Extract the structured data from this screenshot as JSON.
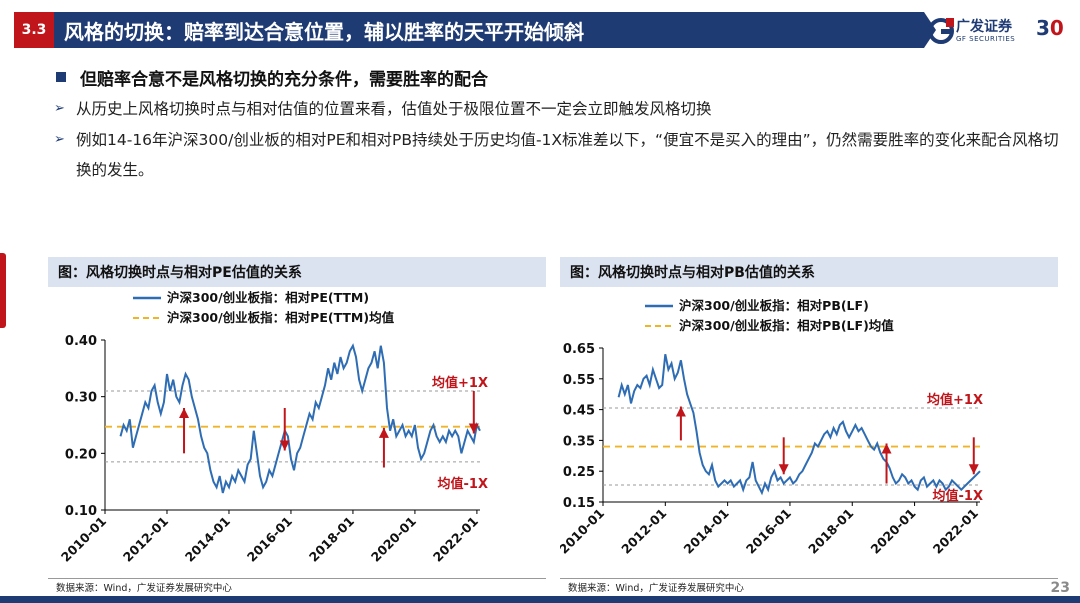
{
  "header": {
    "section": "3.3",
    "title": "风格的切换：赔率到达合意位置，辅以胜率的天平开始倾斜",
    "logo_text": "广发证券",
    "logo_sub": "GF SECURITIES",
    "logo_num": "3",
    "logo_num2": "0"
  },
  "bullets": {
    "main": "但赔率合意不是风格切换的充分条件，需要胜率的配合",
    "sub1": "从历史上风格切换时点与相对估值的位置来看，估值处于极限位置不一定会立即触发风格切换",
    "sub2": "例如14-16年沪深300/创业板的相对PE和相对PB持续处于历史均值-1X标准差以下，“便宜不是买入的理由”，仍然需要胜率的变化来配合风格切换的发生。"
  },
  "left_chart": {
    "panel_title": "图：风格切换时点与相对PE估值的关系",
    "source": "数据来源：Wind，广发证券发展研究中心"
  },
  "right_chart": {
    "panel_title": "图：风格切换时点与相对PB估值的关系",
    "source": "数据来源：Wind，广发证券发展研究中心"
  },
  "page_number": "23",
  "chart_data": [
    {
      "type": "line",
      "title": "图：风格切换时点与相对PE估值的关系",
      "legend": [
        "沪深300/创业板指：相对PE(TTM)",
        "沪深300/创业板指：相对PE(TTM)均值"
      ],
      "x_ticks": [
        "2010-01",
        "2012-01",
        "2014-01",
        "2016-01",
        "2018-01",
        "2020-01",
        "2022-01"
      ],
      "y_ticks": [
        "0.40",
        "0.30",
        "0.20",
        "0.10"
      ],
      "ylim": [
        0.1,
        0.4
      ],
      "xlim": [
        2010.0,
        2022.1
      ],
      "mean": 0.247,
      "plus_1x": 0.31,
      "minus_1x": 0.185,
      "plus_label": "均值+1X",
      "minus_label": "均值-1X",
      "series": [
        {
          "name": "沪深300/创业板指：相对PE(TTM)",
          "x": [
            2010.5,
            2010.6,
            2010.7,
            2010.8,
            2010.9,
            2011.0,
            2011.1,
            2011.2,
            2011.3,
            2011.4,
            2011.5,
            2011.6,
            2011.7,
            2011.8,
            2011.9,
            2012.0,
            2012.1,
            2012.2,
            2012.3,
            2012.4,
            2012.5,
            2012.6,
            2012.7,
            2012.8,
            2012.9,
            2013.0,
            2013.1,
            2013.2,
            2013.3,
            2013.4,
            2013.5,
            2013.6,
            2013.7,
            2013.8,
            2013.9,
            2014.0,
            2014.1,
            2014.2,
            2014.3,
            2014.4,
            2014.5,
            2014.6,
            2014.7,
            2014.8,
            2014.9,
            2015.0,
            2015.1,
            2015.2,
            2015.3,
            2015.4,
            2015.5,
            2015.6,
            2015.7,
            2015.8,
            2015.9,
            2016.0,
            2016.1,
            2016.2,
            2016.3,
            2016.4,
            2016.5,
            2016.6,
            2016.7,
            2016.8,
            2016.9,
            2017.0,
            2017.1,
            2017.2,
            2017.3,
            2017.4,
            2017.5,
            2017.6,
            2017.7,
            2017.8,
            2017.9,
            2018.0,
            2018.1,
            2018.2,
            2018.3,
            2018.4,
            2018.5,
            2018.6,
            2018.7,
            2018.8,
            2018.9,
            2019.0,
            2019.1,
            2019.2,
            2019.3,
            2019.4,
            2019.5,
            2019.6,
            2019.7,
            2019.8,
            2019.9,
            2020.0,
            2020.1,
            2020.2,
            2020.3,
            2020.4,
            2020.5,
            2020.6,
            2020.7,
            2020.8,
            2020.9,
            2021.0,
            2021.1,
            2021.2,
            2021.3,
            2021.4,
            2021.5,
            2021.6,
            2021.7,
            2021.8,
            2021.9,
            2022.0,
            2022.1
          ],
          "values": [
            0.23,
            0.25,
            0.24,
            0.26,
            0.21,
            0.23,
            0.25,
            0.27,
            0.29,
            0.28,
            0.31,
            0.32,
            0.29,
            0.27,
            0.29,
            0.34,
            0.31,
            0.33,
            0.3,
            0.29,
            0.32,
            0.34,
            0.33,
            0.3,
            0.28,
            0.26,
            0.23,
            0.21,
            0.2,
            0.17,
            0.15,
            0.14,
            0.16,
            0.13,
            0.15,
            0.14,
            0.16,
            0.15,
            0.17,
            0.16,
            0.15,
            0.18,
            0.19,
            0.24,
            0.2,
            0.16,
            0.14,
            0.15,
            0.17,
            0.16,
            0.18,
            0.2,
            0.22,
            0.24,
            0.23,
            0.19,
            0.17,
            0.2,
            0.21,
            0.23,
            0.25,
            0.27,
            0.26,
            0.29,
            0.28,
            0.3,
            0.32,
            0.35,
            0.33,
            0.36,
            0.34,
            0.37,
            0.35,
            0.36,
            0.38,
            0.39,
            0.37,
            0.33,
            0.31,
            0.33,
            0.35,
            0.36,
            0.38,
            0.35,
            0.39,
            0.36,
            0.28,
            0.24,
            0.26,
            0.23,
            0.24,
            0.25,
            0.23,
            0.24,
            0.23,
            0.25,
            0.21,
            0.19,
            0.2,
            0.22,
            0.24,
            0.25,
            0.23,
            0.22,
            0.23,
            0.22,
            0.24,
            0.23,
            0.24,
            0.23,
            0.2,
            0.22,
            0.24,
            0.23,
            0.22,
            0.25,
            0.24
          ]
        },
        {
          "name": "沪深300/创业板指：相对PE(TTM)均值",
          "values": [
            0.247
          ]
        }
      ],
      "arrows": [
        {
          "x": 2012.55,
          "direction": "up",
          "from": 0.2,
          "to": 0.28
        },
        {
          "x": 2015.8,
          "direction": "down",
          "from": 0.28,
          "to": 0.205
        },
        {
          "x": 2019.0,
          "direction": "up",
          "from": 0.175,
          "to": 0.245
        },
        {
          "x": 2021.9,
          "direction": "down",
          "from": 0.31,
          "to": 0.235
        }
      ]
    },
    {
      "type": "line",
      "title": "图：风格切换时点与相对PB估值的关系",
      "legend": [
        "沪深300/创业板指：相对PB(LF)",
        "沪深300/创业板指：相对PB(LF)均值"
      ],
      "x_ticks": [
        "2010-01",
        "2012-01",
        "2014-01",
        "2016-01",
        "2018-01",
        "2020-01",
        "2022-01"
      ],
      "y_ticks": [
        "0.65",
        "0.55",
        "0.45",
        "0.35",
        "0.25",
        "0.15"
      ],
      "ylim": [
        0.15,
        0.65
      ],
      "xlim": [
        2010.0,
        2022.1
      ],
      "mean": 0.33,
      "plus_1x": 0.455,
      "minus_1x": 0.205,
      "plus_label": "均值+1X",
      "minus_label": "均值-1X",
      "series": [
        {
          "name": "沪深300/创业板指：相对PB(LF)",
          "x": [
            2010.5,
            2010.6,
            2010.7,
            2010.8,
            2010.9,
            2011.0,
            2011.1,
            2011.2,
            2011.3,
            2011.4,
            2011.5,
            2011.6,
            2011.7,
            2011.8,
            2011.9,
            2012.0,
            2012.1,
            2012.2,
            2012.3,
            2012.4,
            2012.5,
            2012.6,
            2012.7,
            2012.8,
            2012.9,
            2013.0,
            2013.1,
            2013.2,
            2013.3,
            2013.4,
            2013.5,
            2013.6,
            2013.7,
            2013.8,
            2013.9,
            2014.0,
            2014.1,
            2014.2,
            2014.3,
            2014.4,
            2014.5,
            2014.6,
            2014.7,
            2014.8,
            2014.9,
            2015.0,
            2015.1,
            2015.2,
            2015.3,
            2015.4,
            2015.5,
            2015.6,
            2015.7,
            2015.8,
            2015.9,
            2016.0,
            2016.1,
            2016.2,
            2016.3,
            2016.4,
            2016.5,
            2016.6,
            2016.7,
            2016.8,
            2016.9,
            2017.0,
            2017.1,
            2017.2,
            2017.3,
            2017.4,
            2017.5,
            2017.6,
            2017.7,
            2017.8,
            2017.9,
            2018.0,
            2018.1,
            2018.2,
            2018.3,
            2018.4,
            2018.5,
            2018.6,
            2018.7,
            2018.8,
            2018.9,
            2019.0,
            2019.1,
            2019.2,
            2019.3,
            2019.4,
            2019.5,
            2019.6,
            2019.7,
            2019.8,
            2019.9,
            2020.0,
            2020.1,
            2020.2,
            2020.3,
            2020.4,
            2020.5,
            2020.6,
            2020.7,
            2020.8,
            2020.9,
            2021.0,
            2021.1,
            2021.2,
            2021.3,
            2021.4,
            2021.5,
            2021.6,
            2021.7,
            2021.8,
            2021.9,
            2022.0,
            2022.1
          ],
          "values": [
            0.49,
            0.53,
            0.5,
            0.53,
            0.47,
            0.51,
            0.53,
            0.52,
            0.55,
            0.56,
            0.53,
            0.58,
            0.55,
            0.52,
            0.53,
            0.63,
            0.58,
            0.6,
            0.55,
            0.57,
            0.61,
            0.55,
            0.5,
            0.47,
            0.44,
            0.38,
            0.31,
            0.27,
            0.25,
            0.24,
            0.27,
            0.22,
            0.2,
            0.21,
            0.22,
            0.21,
            0.22,
            0.2,
            0.21,
            0.22,
            0.19,
            0.22,
            0.23,
            0.28,
            0.22,
            0.2,
            0.18,
            0.21,
            0.19,
            0.23,
            0.25,
            0.22,
            0.23,
            0.21,
            0.22,
            0.23,
            0.21,
            0.22,
            0.24,
            0.25,
            0.27,
            0.29,
            0.31,
            0.34,
            0.33,
            0.35,
            0.37,
            0.38,
            0.36,
            0.39,
            0.37,
            0.4,
            0.41,
            0.38,
            0.36,
            0.38,
            0.4,
            0.38,
            0.39,
            0.37,
            0.35,
            0.33,
            0.32,
            0.34,
            0.31,
            0.29,
            0.28,
            0.26,
            0.23,
            0.21,
            0.22,
            0.24,
            0.23,
            0.21,
            0.22,
            0.2,
            0.19,
            0.22,
            0.23,
            0.2,
            0.21,
            0.22,
            0.2,
            0.22,
            0.21,
            0.19,
            0.2,
            0.22,
            0.21,
            0.2,
            0.19,
            0.2,
            0.21,
            0.22,
            0.23,
            0.24,
            0.25
          ]
        },
        {
          "name": "沪深300/创业板指：相对PB(LF)均值",
          "values": [
            0.33
          ]
        }
      ],
      "arrows": [
        {
          "x": 2012.5,
          "direction": "up",
          "from": 0.35,
          "to": 0.46
        },
        {
          "x": 2015.8,
          "direction": "down",
          "from": 0.36,
          "to": 0.24
        },
        {
          "x": 2019.1,
          "direction": "up",
          "from": 0.21,
          "to": 0.34
        },
        {
          "x": 2021.9,
          "direction": "down",
          "from": 0.36,
          "to": 0.24
        }
      ]
    }
  ]
}
